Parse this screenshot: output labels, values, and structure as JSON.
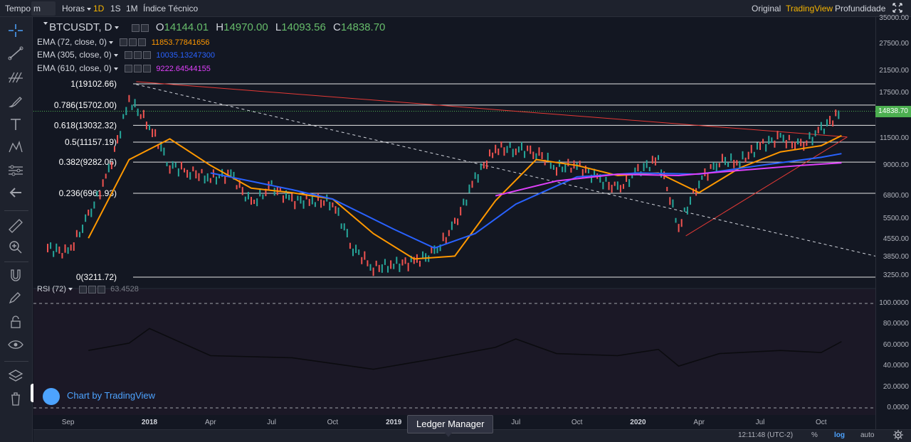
{
  "toolbar": {
    "time_label": "Tempo",
    "interval_value": "m",
    "hours_label": "Horas",
    "intervals": [
      "1D",
      "1S",
      "1M"
    ],
    "active_interval": "1D",
    "indicators_label": "Índice Técnico",
    "views": [
      "Original",
      "TradingView",
      "Profundidade"
    ],
    "active_view": "TradingView"
  },
  "symbol": {
    "ticker": "BTCUSDT, D",
    "open_label": "O",
    "open": "14144.01",
    "high_label": "H",
    "high": "14970.00",
    "low_label": "L",
    "low": "14093.56",
    "close_label": "C",
    "close": "14838.70"
  },
  "indicators": [
    {
      "label": "EMA (72, close, 0)",
      "value": "11853.77841656",
      "color": "#ff9800"
    },
    {
      "label": "EMA (305, close, 0)",
      "value": "10035.13247300",
      "color": "#2962ff"
    },
    {
      "label": "EMA (610, close, 0)",
      "value": "9222.64544155",
      "color": "#e040fb"
    }
  ],
  "fib_levels": [
    {
      "label": "1(19102.66)",
      "price": 19102.66
    },
    {
      "label": "0.786(15702.00)",
      "price": 15702.0
    },
    {
      "label": "0.618(13032.32)",
      "price": 13032.32
    },
    {
      "label": "0.5(11157.19)",
      "price": 11157.19
    },
    {
      "label": "0.382(9282.06)",
      "price": 9282.06
    },
    {
      "label": "0.236(6961.93)",
      "price": 6961.93
    },
    {
      "label": "0(3211.72)",
      "price": 3211.72
    }
  ],
  "price_axis": {
    "ticks": [
      "35000.00",
      "27500.00",
      "21500.00",
      "17500.00",
      "14838.70",
      "11500.00",
      "9000.00",
      "6800.00",
      "5500.00",
      "4550.00",
      "3850.00",
      "3250.00"
    ],
    "last_price": "14838.70",
    "last_price_color": "#4caf50"
  },
  "rsi": {
    "label": "RSI (72)",
    "value": "63.4528",
    "ticks": [
      "100.0000",
      "80.0000",
      "60.0000",
      "40.0000",
      "20.0000",
      "0.0000"
    ]
  },
  "time_axis": {
    "labels": [
      {
        "text": "Sep",
        "year": false
      },
      {
        "text": "2018",
        "year": true
      },
      {
        "text": "Apr",
        "year": false
      },
      {
        "text": "Jul",
        "year": false
      },
      {
        "text": "Oct",
        "year": false
      },
      {
        "text": "2019",
        "year": true
      },
      {
        "text": "Apr",
        "year": false
      },
      {
        "text": "Jul",
        "year": false
      },
      {
        "text": "Oct",
        "year": false
      },
      {
        "text": "2020",
        "year": true
      },
      {
        "text": "Apr",
        "year": false
      },
      {
        "text": "Jul",
        "year": false
      },
      {
        "text": "Oct",
        "year": false
      }
    ]
  },
  "status": {
    "clock": "12:11:48 (UTC-2)",
    "percent": "%",
    "log": "log",
    "auto": "auto"
  },
  "watermark": "Chart by TradingView",
  "tooltip": "Ledger Manager",
  "chart_data": {
    "type": "line",
    "symbol": "BTCUSDT",
    "scale": "log",
    "series": [
      {
        "name": "BTCUSDT, D",
        "color": "#9ca3af",
        "x": [
          "2017-08",
          "2017-09",
          "2017-10",
          "2017-11",
          "2017-12",
          "2018-01",
          "2018-02",
          "2018-03",
          "2018-04",
          "2018-05",
          "2018-06",
          "2018-07",
          "2018-08",
          "2018-09",
          "2018-10",
          "2018-11",
          "2018-12",
          "2019-01",
          "2019-02",
          "2019-03",
          "2019-04",
          "2019-05",
          "2019-06",
          "2019-07",
          "2019-08",
          "2019-09",
          "2019-10",
          "2019-11",
          "2019-12",
          "2020-01",
          "2020-02",
          "2020-03",
          "2020-04",
          "2020-05",
          "2020-06",
          "2020-07",
          "2020-08",
          "2020-09",
          "2020-10",
          "2020-11"
        ],
        "values": [
          4200,
          4000,
          5600,
          8500,
          16500,
          13000,
          9000,
          8500,
          8000,
          8300,
          6300,
          7400,
          6500,
          6500,
          6400,
          4200,
          3500,
          3600,
          3700,
          4000,
          5200,
          8000,
          10500,
          10500,
          10200,
          8800,
          9000,
          8000,
          7200,
          8500,
          9500,
          5100,
          7800,
          9400,
          9300,
          10800,
          11600,
          10700,
          12500,
          14838.7
        ]
      },
      {
        "name": "EMA (72, close, 0)",
        "color": "#ff9800",
        "x": [
          "2017-10",
          "2017-12",
          "2018-02",
          "2018-04",
          "2018-06",
          "2018-08",
          "2018-10",
          "2018-12",
          "2019-02",
          "2019-04",
          "2019-06",
          "2019-08",
          "2019-10",
          "2019-12",
          "2020-02",
          "2020-04",
          "2020-06",
          "2020-08",
          "2020-10",
          "2020-11"
        ],
        "values": [
          4600,
          9500,
          11500,
          9000,
          7300,
          7000,
          6600,
          4800,
          3800,
          3900,
          6500,
          9500,
          9000,
          8200,
          8400,
          7000,
          8800,
          10200,
          10800,
          11853.78
        ]
      },
      {
        "name": "EMA (305, close, 0)",
        "color": "#2962ff",
        "x": [
          "2018-04",
          "2018-08",
          "2018-10",
          "2019-01",
          "2019-03",
          "2019-05",
          "2019-07",
          "2019-10",
          "2020-01",
          "2020-04",
          "2020-07",
          "2020-10",
          "2020-11"
        ],
        "values": [
          8400,
          7200,
          6600,
          5000,
          4200,
          4800,
          6300,
          8100,
          8400,
          8300,
          9000,
          9700,
          10035.13
        ]
      },
      {
        "name": "EMA (610, close, 0)",
        "color": "#e040fb",
        "x": [
          "2019-06",
          "2019-09",
          "2019-12",
          "2020-03",
          "2020-06",
          "2020-09",
          "2020-11"
        ],
        "values": [
          6800,
          7800,
          8300,
          8200,
          8600,
          9000,
          9222.65
        ]
      }
    ],
    "rsi": {
      "name": "RSI (72)",
      "ylim": [
        0,
        100
      ],
      "x": [
        "2017-10",
        "2017-12",
        "2018-01",
        "2018-04",
        "2018-08",
        "2018-12",
        "2019-03",
        "2019-06",
        "2019-07",
        "2019-09",
        "2019-12",
        "2020-02",
        "2020-03",
        "2020-05",
        "2020-08",
        "2020-10",
        "2020-11"
      ],
      "values": [
        55,
        62,
        76,
        50,
        48,
        37,
        47,
        58,
        66,
        52,
        50,
        56,
        40,
        52,
        55,
        53,
        63.45
      ]
    },
    "ylim": [
      3000,
      35000
    ],
    "ylabel": "",
    "xlabel": ""
  }
}
